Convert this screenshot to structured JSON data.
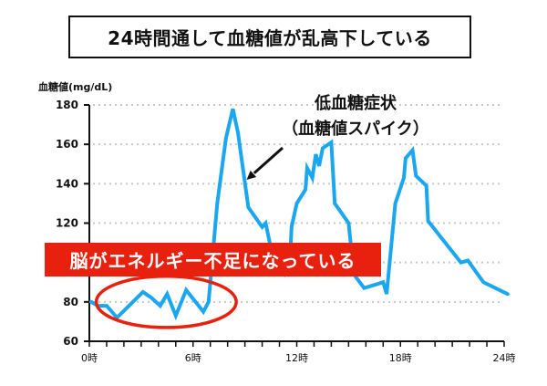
{
  "title": "24時間通して血糖値が乱高下している",
  "annotation": {
    "line1": "低血糖症状",
    "line2": "（血糖値スパイク）"
  },
  "banner": {
    "text": "脳がエネルギー不足になっている",
    "color": "#e8200e"
  },
  "colors": {
    "line": "#1aa7f0",
    "grid": "#c8c8c8",
    "axis": "#111111",
    "ellipse": "#e8200e",
    "banner": "#e8200e"
  },
  "chart_data": {
    "type": "line",
    "title": "24時間通して血糖値が乱高下している",
    "xlabel": "",
    "ylabel": "血糖値(mg/dL)",
    "xlim": [
      0,
      24
    ],
    "ylim": [
      60,
      180
    ],
    "grid": true,
    "y_ticks": [
      60,
      80,
      100,
      120,
      140,
      160,
      180
    ],
    "x_ticks": [
      0,
      6,
      12,
      18,
      24
    ],
    "x_tick_labels": [
      "0時",
      "6時",
      "12時",
      "18時",
      "24時"
    ],
    "x_minor_tick_step": 1,
    "series": [
      {
        "name": "血糖値",
        "x": [
          0.1,
          0.5,
          1.0,
          1.6,
          3.1,
          3.6,
          4.1,
          4.5,
          5.0,
          5.6,
          6.6,
          6.9,
          7.4,
          7.9,
          8.3,
          8.6,
          9.2,
          10.0,
          10.2,
          10.7,
          11.3,
          11.6,
          11.7,
          12.0,
          12.5,
          12.6,
          12.9,
          13.1,
          13.3,
          13.5,
          14.0,
          14.2,
          15.0,
          15.3,
          15.9,
          17.0,
          17.2,
          17.7,
          18.2,
          18.3,
          18.7,
          18.9,
          19.5,
          19.6,
          21.5,
          21.9,
          22.8,
          24.2
        ],
        "values": [
          80,
          78,
          78,
          72,
          85,
          82,
          78,
          84,
          73,
          86,
          75,
          80,
          130,
          163,
          178,
          166,
          128,
          118,
          120,
          99,
          94,
          99,
          118,
          130,
          137,
          148,
          143,
          155,
          149,
          158,
          161,
          130,
          120,
          94,
          87,
          90,
          84,
          130,
          143,
          153,
          157,
          144,
          139,
          121,
          100,
          101,
          90,
          84
        ]
      }
    ],
    "annotations": [
      {
        "text": "低血糖症状（血糖値スパイク）",
        "arrow_to": [
          9.1,
          142
        ]
      },
      {
        "text": "脳がエネルギー不足になっている",
        "highlight": "ellipse",
        "x_range": [
          0.4,
          8.5
        ],
        "y_range": [
          67,
          93
        ]
      }
    ]
  }
}
